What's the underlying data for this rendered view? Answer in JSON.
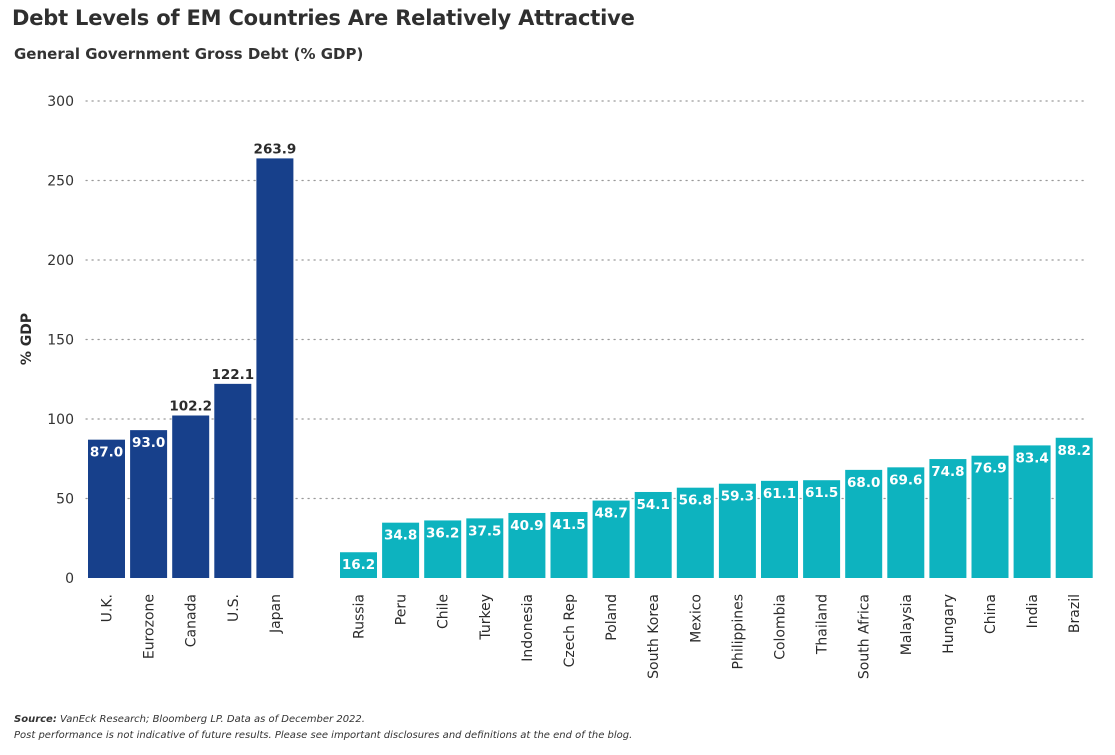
{
  "title": "Debt Levels of EM Countries Are Relatively Attractive",
  "subtitle": "General Government Gross Debt (% GDP)",
  "footer": {
    "source_label": "Source:",
    "source_text": "VanEck Research; Bloomberg LP. Data as of December 2022.",
    "disclaimer": "Post performance is not indicative of future results. Please see important disclosures and definitions at the end of the blog."
  },
  "colors": {
    "developed": "#17408b",
    "emerging": "#0db3bf",
    "grid": "#9a9a9a"
  },
  "chart_data": {
    "type": "bar",
    "ylabel": "% GDP",
    "xlabel": "",
    "ylim": [
      0,
      300
    ],
    "yticks": [
      0,
      50,
      100,
      150,
      200,
      250,
      300
    ],
    "grid": true,
    "grid_style": "dotted",
    "groups": [
      {
        "categories": [
          "U.K.",
          "Eurozone",
          "Canada",
          "U.S.",
          "Japan"
        ],
        "values": [
          87.0,
          93.0,
          102.2,
          122.1,
          263.9
        ],
        "color": "#17408b"
      },
      {
        "categories": [
          "Russia",
          "Peru",
          "Chile",
          "Turkey",
          "Indonesia",
          "Czech Rep",
          "Poland",
          "South Korea",
          "Mexico",
          "Philippines",
          "Colombia",
          "Thailand",
          "South Africa",
          "Malaysia",
          "Hungary",
          "China",
          "India",
          "Brazil"
        ],
        "values": [
          16.2,
          34.8,
          36.2,
          37.5,
          40.9,
          41.5,
          48.7,
          54.1,
          56.8,
          59.3,
          61.1,
          61.5,
          68.0,
          69.6,
          74.8,
          76.9,
          83.4,
          88.2
        ],
        "color": "#0db3bf"
      }
    ]
  }
}
